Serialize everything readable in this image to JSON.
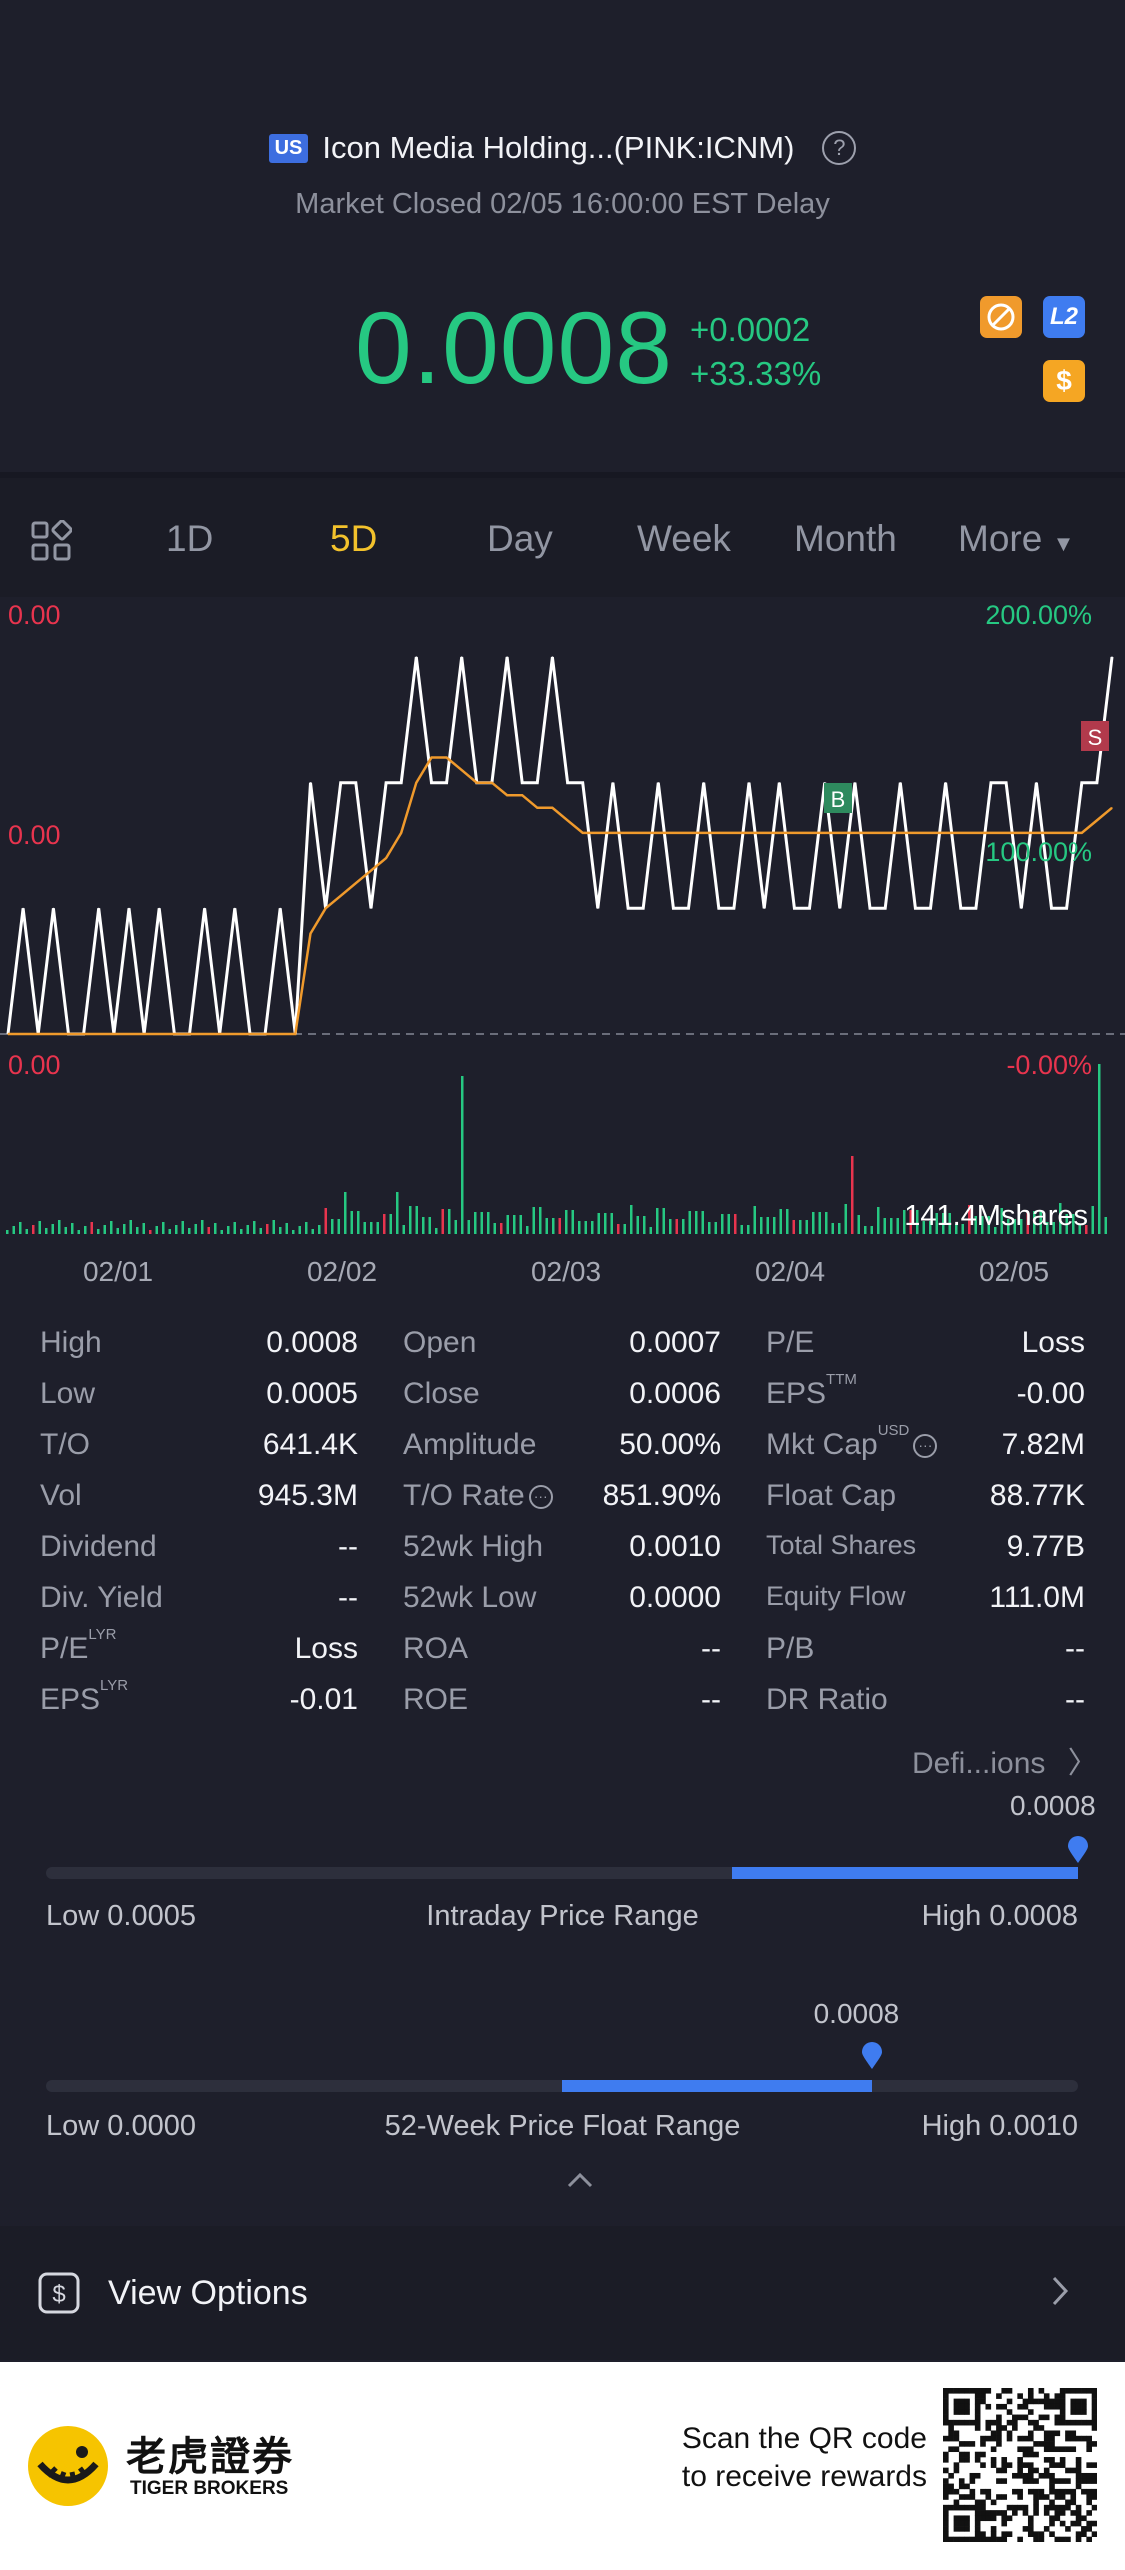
{
  "header": {
    "market_badge": "US",
    "title": "Icon Media Holding...(PINK:ICNM)",
    "status": "Market Closed 02/05 16:00:00 EST Delay",
    "price": "0.0008",
    "change": "+0.0002",
    "change_pct": "+33.33%",
    "icons": [
      "no-lightning-icon",
      "level2-icon",
      "dollar-icon"
    ],
    "l2_label": "L2",
    "dollar_label": "$",
    "colors": {
      "up": "#26c882",
      "down": "#e8344e",
      "accent": "#f3c22c",
      "blue": "#3f7cf0"
    }
  },
  "tabs": {
    "items": [
      "1D",
      "5D",
      "Day",
      "Week",
      "Month",
      "More"
    ],
    "active": "5D"
  },
  "chart_data": {
    "type": "line",
    "title": "",
    "x_labels": [
      "02/01",
      "02/02",
      "02/03",
      "02/04",
      "02/05"
    ],
    "left_axis": [
      "0.00",
      "0.00"
    ],
    "right_axis": [
      "200.00%",
      "100.00%"
    ],
    "volume_left": "0.00",
    "volume_right": "-0.00%",
    "volume_label": "141.4Mshares",
    "markers": [
      "B",
      "S"
    ],
    "series": [
      {
        "name": "",
        "color": "#ffffff",
        "values": [
          0.0005,
          0.0006,
          0.0005,
          0.0006,
          0.0005,
          0.0005,
          0.0006,
          0.0005,
          0.0006,
          0.0005,
          0.0006,
          0.0005,
          0.0005,
          0.0006,
          0.0005,
          0.0006,
          0.0005,
          0.0005,
          0.0006,
          0.0005,
          0.0007,
          0.0006,
          0.0007,
          0.0007,
          0.0006,
          0.0007,
          0.0007,
          0.0008,
          0.0007,
          0.0007,
          0.0008,
          0.0007,
          0.0007,
          0.0008,
          0.0007,
          0.0007,
          0.0008,
          0.0007,
          0.0007,
          0.0006,
          0.0007,
          0.0006,
          0.0006,
          0.0007,
          0.0006,
          0.0006,
          0.0007,
          0.0006,
          0.0006,
          0.0007,
          0.0006,
          0.0007,
          0.0006,
          0.0006,
          0.0007,
          0.0006,
          0.0007,
          0.0006,
          0.0006,
          0.0007,
          0.0006,
          0.0006,
          0.0007,
          0.0006,
          0.0006,
          0.0007,
          0.0007,
          0.0006,
          0.0007,
          0.0006,
          0.0006,
          0.0007,
          0.0007,
          0.0008
        ]
      },
      {
        "name": "",
        "color": "#f09a2c",
        "values": [
          0.0005,
          0.0005,
          0.0005,
          0.0005,
          0.0005,
          0.0005,
          0.0005,
          0.0005,
          0.0005,
          0.0005,
          0.0005,
          0.0005,
          0.0005,
          0.0005,
          0.0005,
          0.0005,
          0.0005,
          0.0005,
          0.0005,
          0.0005,
          0.00058,
          0.0006,
          0.00061,
          0.00062,
          0.00063,
          0.00064,
          0.00066,
          0.0007,
          0.00072,
          0.00072,
          0.00071,
          0.0007,
          0.0007,
          0.00069,
          0.00069,
          0.00068,
          0.00068,
          0.00067,
          0.00066,
          0.00066,
          0.00066,
          0.00066,
          0.00066,
          0.00066,
          0.00066,
          0.00066,
          0.00066,
          0.00066,
          0.00066,
          0.00066,
          0.00066,
          0.00066,
          0.00066,
          0.00066,
          0.00066,
          0.00066,
          0.00066,
          0.00066,
          0.00066,
          0.00066,
          0.00066,
          0.00066,
          0.00066,
          0.00066,
          0.00066,
          0.00066,
          0.00066,
          0.00066,
          0.00066,
          0.00066,
          0.00066,
          0.00066,
          0.00067,
          0.00068
        ]
      }
    ]
  },
  "stats": {
    "col1": [
      {
        "label": "High",
        "sup": "",
        "value": "0.0008"
      },
      {
        "label": "Low",
        "sup": "",
        "value": "0.0005"
      },
      {
        "label": "T/O",
        "sup": "",
        "value": "641.4K"
      },
      {
        "label": "Vol",
        "sup": "",
        "value": "945.3M"
      },
      {
        "label": "Dividend",
        "sup": "",
        "value": "--"
      },
      {
        "label": "Div. Yield",
        "sup": "",
        "value": "--"
      },
      {
        "label": "P/E",
        "sup": "LYR",
        "value": "Loss"
      },
      {
        "label": "EPS",
        "sup": "LYR",
        "value": "-0.01"
      }
    ],
    "col2": [
      {
        "label": "Open",
        "sup": "",
        "value": "0.0007"
      },
      {
        "label": "Close",
        "sup": "",
        "value": "0.0006"
      },
      {
        "label": "Amplitude",
        "sup": "",
        "value": "50.00%"
      },
      {
        "label": "T/O Rate",
        "sup": "",
        "value": "851.90%"
      },
      {
        "label": "52wk High",
        "sup": "",
        "value": "0.0010"
      },
      {
        "label": "52wk Low",
        "sup": "",
        "value": "0.0000"
      },
      {
        "label": "ROA",
        "sup": "",
        "value": "--"
      },
      {
        "label": "ROE",
        "sup": "",
        "value": "--"
      }
    ],
    "col3": [
      {
        "label": "P/E",
        "sup": "",
        "value": "Loss"
      },
      {
        "label": "EPS",
        "sup": "TTM",
        "value": "-0.00"
      },
      {
        "label": "Mkt Cap",
        "sup": "USD",
        "value": "7.82M"
      },
      {
        "label": "Float Cap",
        "sup": "",
        "value": "88.77K"
      },
      {
        "label": "Total Shares",
        "sup": "",
        "value": "9.77B"
      },
      {
        "label": "Equity Flow",
        "sup": "",
        "value": "111.0M"
      },
      {
        "label": "P/B",
        "sup": "",
        "value": "--"
      },
      {
        "label": "DR Ratio",
        "sup": "",
        "value": "--"
      }
    ]
  },
  "definitions_link": "Defi...ions",
  "intraday_range": {
    "current": "0.0008",
    "low": "Low 0.0005",
    "label": "Intraday Price Range",
    "high": "High 0.0008",
    "fill_start": 0.665,
    "fill_end": 1.0,
    "marker": 1.0
  },
  "week52_range": {
    "current": "0.0008",
    "low": "Low 0.0000",
    "label": "52-Week Price Float Range",
    "high": "High 0.0010",
    "fill_start": 0.5,
    "fill_end": 0.8,
    "marker": 0.8
  },
  "options": {
    "label": "View Options"
  },
  "footer": {
    "brand_cn": "老虎證券",
    "brand_en": "TIGER BROKERS",
    "scan_line1": "Scan the QR code",
    "scan_line2": "to receive rewards"
  }
}
